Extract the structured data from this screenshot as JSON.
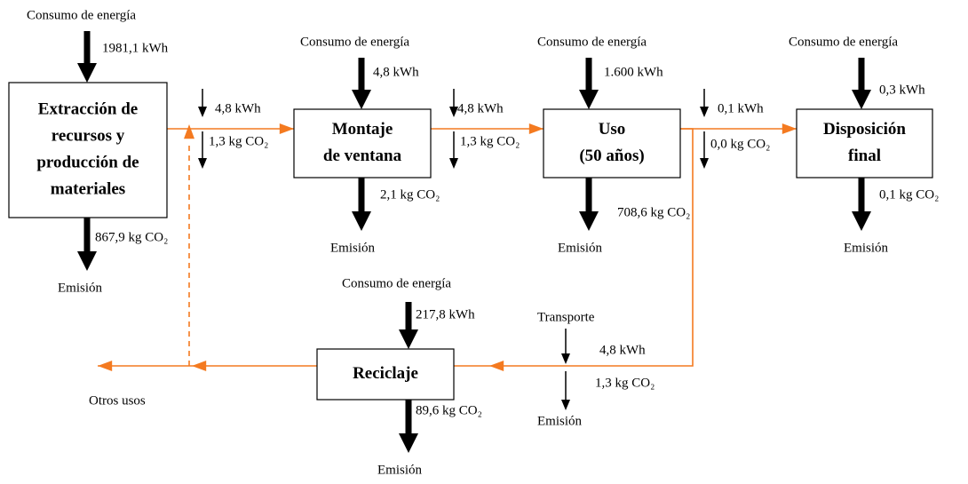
{
  "boxes": [
    {
      "lines": [
        "Extracción de",
        "recursos y",
        "producción de",
        "materiales"
      ]
    },
    {
      "lines": [
        "Montaje",
        "de ventana"
      ]
    },
    {
      "lines": [
        "Uso",
        "(50 años)"
      ]
    },
    {
      "lines": [
        "Disposición",
        "final"
      ]
    },
    {
      "lines": [
        "Reciclaje"
      ]
    }
  ],
  "labels": [
    "Consumo de energía",
    "1981,1 kWh",
    "867,9 kg CO₂",
    "Emisión",
    "4,8 kWh",
    "1,3 kg CO₂",
    "Consumo de energía",
    "4,8 kWh",
    "2,1 kg CO₂",
    "Emisión",
    "4,8 kWh",
    "1,3 kg CO₂",
    "Consumo de energía",
    "1.600 kWh",
    "708,6 kg CO₂",
    "Emisión",
    "0,1 kWh",
    "0,0 kg CO₂",
    "Consumo de energía",
    "0,3 kWh",
    "0,1 kg CO₂",
    "Emisión",
    "Consumo de energía",
    "217,8 kWh",
    "89,6 kg CO₂",
    "Emisión",
    "Transporte",
    "4,8 kWh",
    "1,3 kg CO₂",
    "Emisión",
    "Otros usos"
  ]
}
